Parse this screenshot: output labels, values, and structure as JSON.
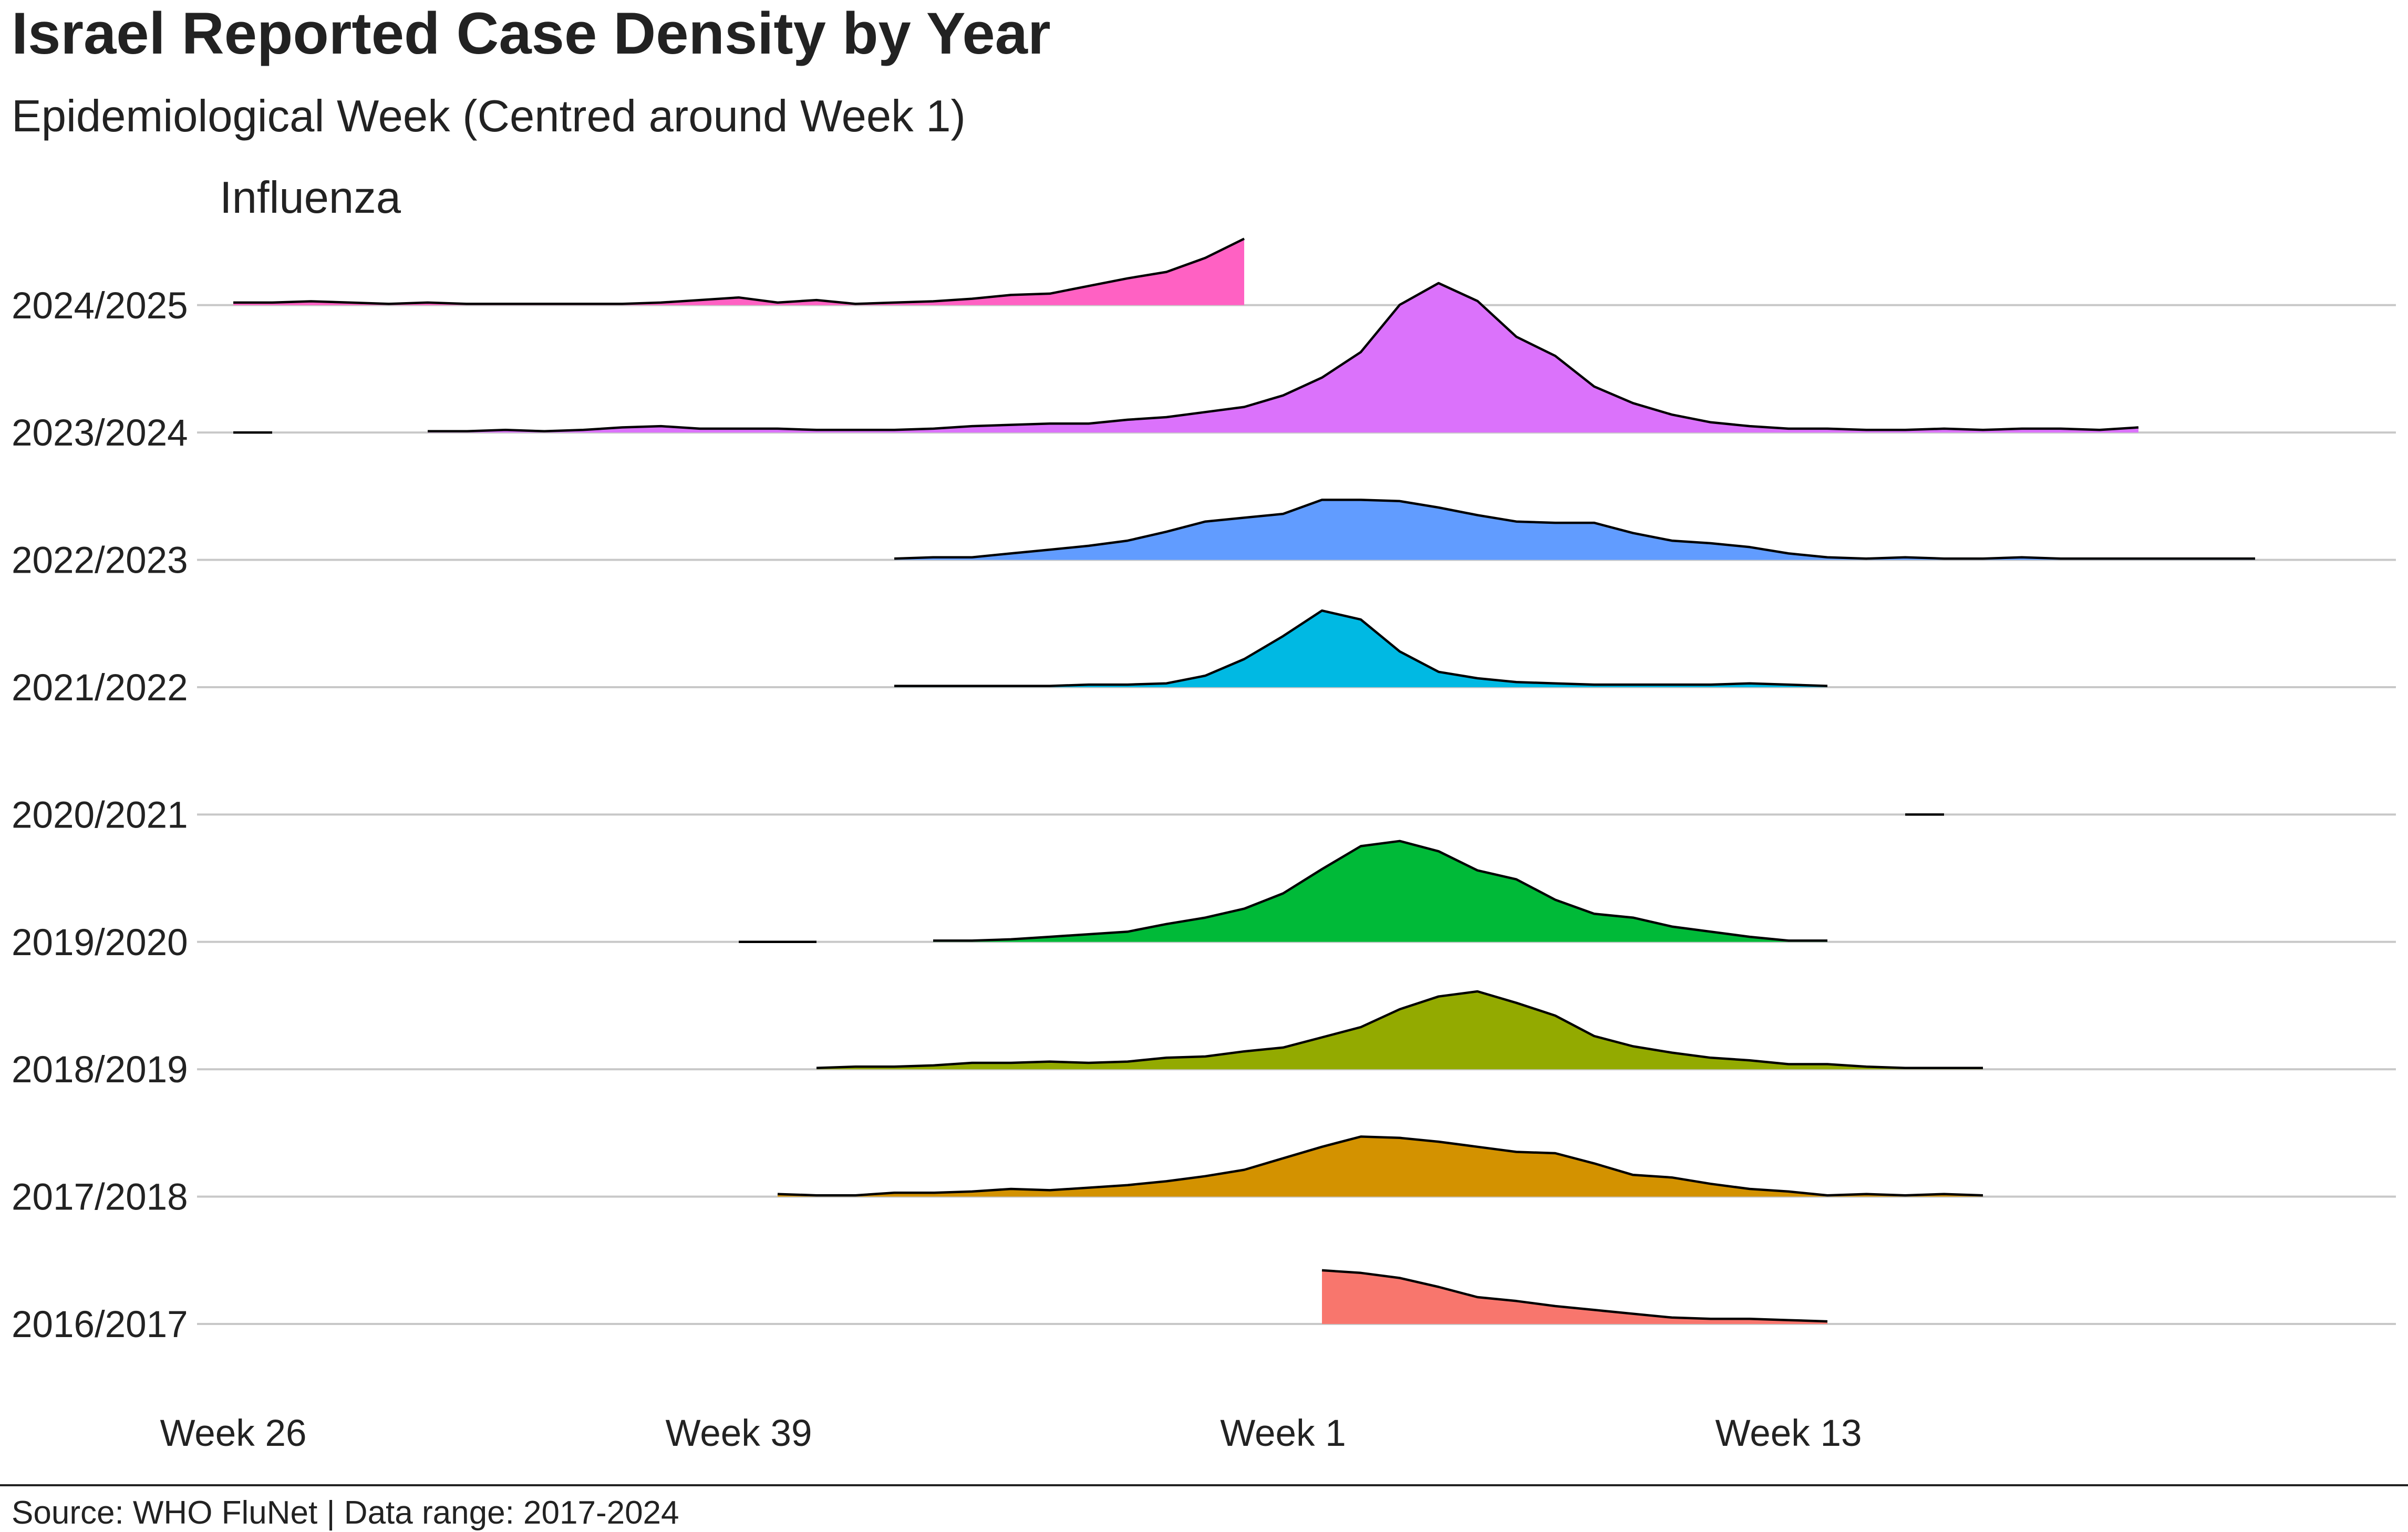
{
  "title": "Israel Reported Case Density by Year",
  "subtitle": "Epidemiological Week (Centred around Week 1)",
  "facet": "Influenza",
  "caption": "Source: WHO FluNet | Data range: 2017-2024",
  "chart_data": {
    "type": "area",
    "subtype": "ridgeline",
    "x_axis": {
      "label": "",
      "note": "relative week index, 0 = Week 1",
      "ticks": [
        {
          "x": -27,
          "label": "Week 26"
        },
        {
          "x": -14,
          "label": "Week 39"
        },
        {
          "x": 0,
          "label": "Week 1"
        },
        {
          "x": 13,
          "label": "Week 13"
        }
      ],
      "range": [
        -34,
        29
      ]
    },
    "y_axis": {
      "label": "",
      "note": "one row per season, heights are relative density"
    },
    "grid": "horizontal baselines only",
    "legend": "none",
    "series": [
      {
        "name": "2016/2017",
        "color": "#F8766D",
        "x_start": 1,
        "values": [
          0.42,
          0.4,
          0.36,
          0.29,
          0.21,
          0.18,
          0.14,
          0.11,
          0.08,
          0.05,
          0.04,
          0.04,
          0.03,
          0.02
        ]
      },
      {
        "name": "2017/2018",
        "color": "#D39200",
        "x_start": -13,
        "values": [
          0.02,
          0.01,
          0.01,
          0.03,
          0.03,
          0.04,
          0.06,
          0.05,
          0.07,
          0.09,
          0.12,
          0.16,
          0.21,
          0.3,
          0.39,
          0.47,
          0.46,
          0.43,
          0.39,
          0.35,
          0.34,
          0.26,
          0.17,
          0.15,
          0.1,
          0.06,
          0.04,
          0.01,
          0.02,
          0.01,
          0.02,
          0.01
        ]
      },
      {
        "name": "2018/2019",
        "color": "#93AA00",
        "x_start": -12,
        "values": [
          0.01,
          0.02,
          0.02,
          0.03,
          0.05,
          0.05,
          0.06,
          0.05,
          0.06,
          0.09,
          0.1,
          0.14,
          0.17,
          0.25,
          0.33,
          0.47,
          0.57,
          0.61,
          0.52,
          0.42,
          0.26,
          0.18,
          0.13,
          0.09,
          0.07,
          0.04,
          0.04,
          0.02,
          0.01,
          0.01,
          0.01
        ]
      },
      {
        "name": "2019/2020",
        "color": "#00BA38",
        "x_start": -9,
        "values": [
          0.01,
          0.01,
          0.02,
          0.04,
          0.06,
          0.08,
          0.14,
          0.19,
          0.26,
          0.38,
          0.57,
          0.75,
          0.79,
          0.71,
          0.56,
          0.49,
          0.33,
          0.22,
          0.19,
          0.12,
          0.08,
          0.04,
          0.01,
          0.01
        ],
        "extra_segments": [
          {
            "x": [
              -14,
              -12
            ],
            "values": [
              0.0,
              0.0
            ]
          }
        ]
      },
      {
        "name": "2020/2021",
        "color": "#00C19F",
        "x_start": 16,
        "values": [
          0.0,
          0.0
        ]
      },
      {
        "name": "2021/2022",
        "color": "#00B9E3",
        "x_start": -10,
        "values": [
          0.01,
          0.01,
          0.01,
          0.01,
          0.01,
          0.02,
          0.02,
          0.03,
          0.09,
          0.22,
          0.4,
          0.6,
          0.53,
          0.28,
          0.12,
          0.07,
          0.04,
          0.03,
          0.02,
          0.02,
          0.02,
          0.02,
          0.03,
          0.02,
          0.01
        ]
      },
      {
        "name": "2022/2023",
        "color": "#619CFF",
        "x_start": -10,
        "values": [
          0.01,
          0.02,
          0.02,
          0.05,
          0.08,
          0.11,
          0.15,
          0.22,
          0.3,
          0.33,
          0.36,
          0.47,
          0.47,
          0.46,
          0.41,
          0.35,
          0.3,
          0.29,
          0.29,
          0.21,
          0.15,
          0.13,
          0.1,
          0.05,
          0.02,
          0.01,
          0.02,
          0.01,
          0.01,
          0.02,
          0.01,
          0.01,
          0.01,
          0.01,
          0.01,
          0.01
        ]
      },
      {
        "name": "2023/2024",
        "color": "#DB72FB",
        "x_start": -22,
        "values": [
          0.01,
          0.01,
          0.02,
          0.01,
          0.02,
          0.04,
          0.05,
          0.03,
          0.03,
          0.03,
          0.02,
          0.02,
          0.02,
          0.03,
          0.05,
          0.06,
          0.07,
          0.07,
          0.1,
          0.12,
          0.16,
          0.2,
          0.29,
          0.43,
          0.63,
          1.0,
          1.17,
          1.03,
          0.75,
          0.6,
          0.36,
          0.23,
          0.14,
          0.08,
          0.05,
          0.03,
          0.03,
          0.02,
          0.02,
          0.03,
          0.02,
          0.03,
          0.03,
          0.02,
          0.04
        ],
        "extra_segments": [
          {
            "x": [
              -27,
              -26
            ],
            "values": [
              0.0,
              0.0
            ]
          }
        ]
      },
      {
        "name": "2024/2025",
        "color": "#FF61C3",
        "x_start": -27,
        "values": [
          0.02,
          0.02,
          0.03,
          0.02,
          0.01,
          0.02,
          0.01,
          0.01,
          0.01,
          0.01,
          0.01,
          0.02,
          0.04,
          0.06,
          0.02,
          0.04,
          0.01,
          0.02,
          0.03,
          0.05,
          0.08,
          0.09,
          0.15,
          0.21,
          0.26,
          0.37,
          0.52
        ]
      }
    ]
  }
}
